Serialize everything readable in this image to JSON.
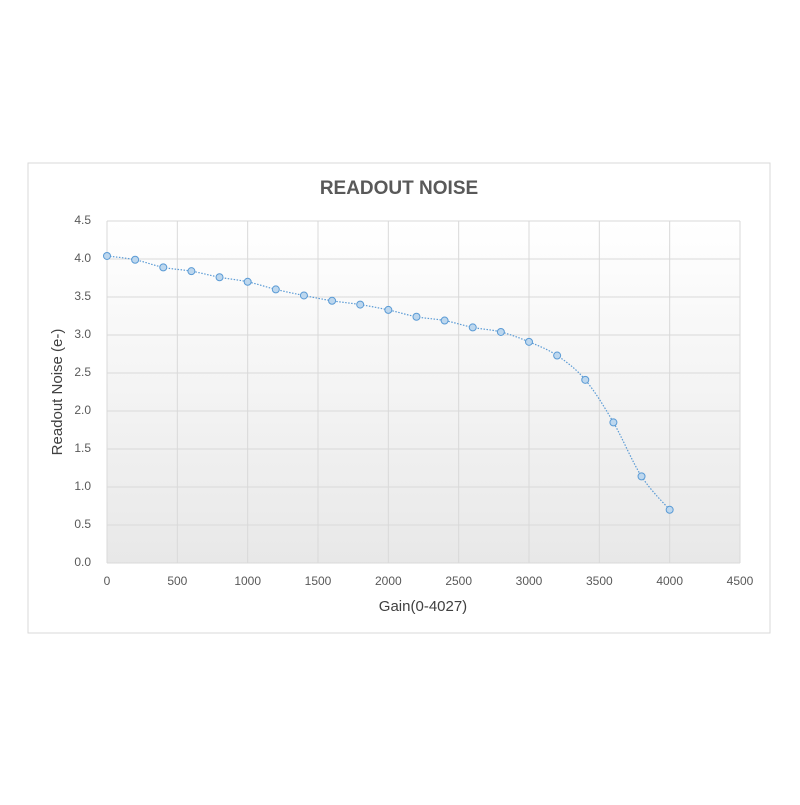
{
  "chart_data": {
    "type": "line",
    "title": "READOUT NOISE",
    "x_label": "Gain(0-4027)",
    "y_label": "Readout Noise (e-)",
    "x": [
      0,
      200,
      400,
      600,
      800,
      1000,
      1200,
      1400,
      1600,
      1800,
      2000,
      2200,
      2400,
      2600,
      2800,
      3000,
      3200,
      3400,
      3600,
      3800,
      4000
    ],
    "series": [
      {
        "color": "#5b9bd5",
        "values": [
          4.04,
          3.99,
          3.89,
          3.84,
          3.76,
          3.7,
          3.6,
          3.52,
          3.45,
          3.4,
          3.33,
          3.24,
          3.19,
          3.1,
          3.04,
          2.91,
          2.73,
          2.41,
          1.85,
          1.14,
          0.7
        ]
      }
    ],
    "xlim": [
      0,
      4500
    ],
    "xticks": [
      0,
      500,
      1000,
      1500,
      2000,
      2500,
      3000,
      3500,
      4000,
      4500
    ],
    "ylim": [
      0,
      4.5
    ],
    "yticks": [
      {
        "value": 0,
        "label": "0.0"
      },
      0.5,
      {
        "value": 1,
        "label": "1.0"
      },
      1.5,
      {
        "value": 2,
        "label": "2.0"
      },
      2.5,
      {
        "value": 3,
        "label": "3.0"
      },
      3.5,
      {
        "value": 4,
        "label": "4.0"
      },
      4.5
    ],
    "grid": true,
    "smooth": true
  }
}
